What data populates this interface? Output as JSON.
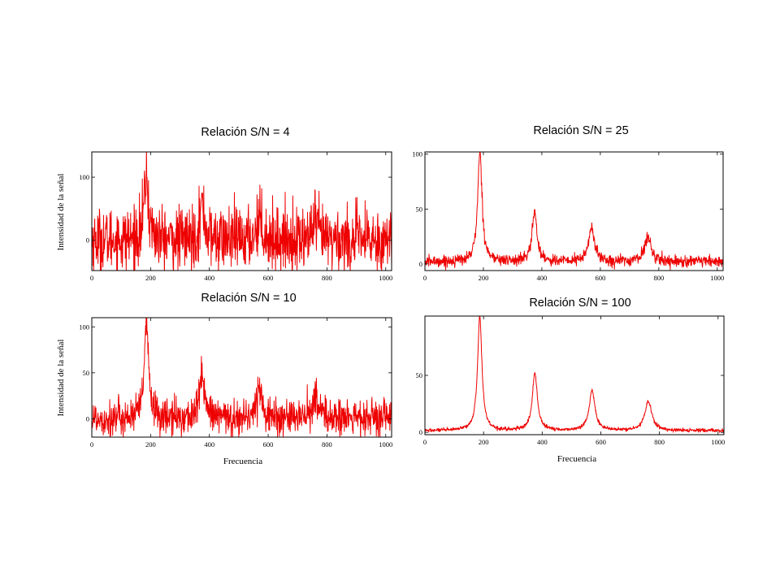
{
  "colors": {
    "trace": "#ee0000",
    "axis": "#000000",
    "background": "#ffffff"
  },
  "chart_data": [
    {
      "id": "sn4",
      "type": "line",
      "title": "Relación S/N = 4",
      "xlabel": "",
      "ylabel": "Intensidad de la señal",
      "xlim": [
        0,
        1020
      ],
      "ylim": [
        -48,
        140
      ],
      "xticks": [
        "0",
        "200",
        "400",
        "600",
        "800",
        "1000"
      ],
      "yticks": [
        "0",
        "100"
      ],
      "grid": false,
      "signal": {
        "baseline": 0,
        "noise_sd": 25,
        "peaks": [
          [
            185,
            100,
            9
          ],
          [
            375,
            55,
            10
          ],
          [
            570,
            35,
            12
          ],
          [
            760,
            25,
            14
          ]
        ]
      }
    },
    {
      "id": "sn25",
      "type": "line",
      "title": "Relación S/N = 25",
      "xlabel": "",
      "ylabel": "",
      "xlim": [
        0,
        1020
      ],
      "ylim": [
        -6,
        102
      ],
      "xticks": [
        "0",
        "200",
        "400",
        "600",
        "800",
        "1000"
      ],
      "yticks": [
        "0",
        "50",
        "100"
      ],
      "grid": false,
      "signal": {
        "baseline": 2,
        "noise_sd": 2.6,
        "peaks": [
          [
            188,
            100,
            9
          ],
          [
            375,
            45,
            10
          ],
          [
            570,
            31,
            12
          ],
          [
            762,
            22,
            14
          ]
        ]
      }
    },
    {
      "id": "sn10",
      "type": "line",
      "title": "Relación S/N = 10",
      "xlabel": "Frecuencia",
      "ylabel": "Intensidad de la señal",
      "xlim": [
        0,
        1020
      ],
      "ylim": [
        -20,
        110
      ],
      "xticks": [
        "0",
        "200",
        "400",
        "600",
        "800",
        "1000"
      ],
      "yticks": [
        "0",
        "50",
        "100"
      ],
      "grid": false,
      "signal": {
        "baseline": 0,
        "noise_sd": 10,
        "peaks": [
          [
            186,
            100,
            9
          ],
          [
            375,
            50,
            10
          ],
          [
            570,
            32,
            12
          ],
          [
            762,
            24,
            14
          ]
        ]
      }
    },
    {
      "id": "sn100",
      "type": "line",
      "title": "Relación S/N = 100",
      "xlabel": "Frecuencia",
      "ylabel": "",
      "xlim": [
        0,
        1020
      ],
      "ylim": [
        -2,
        102
      ],
      "xticks": [
        "0",
        "200",
        "400",
        "600",
        "800",
        "1000"
      ],
      "yticks": [
        "0",
        "50"
      ],
      "grid": false,
      "signal": {
        "baseline": 1.5,
        "noise_sd": 0.8,
        "peaks": [
          [
            187,
            100,
            9
          ],
          [
            375,
            51,
            10
          ],
          [
            570,
            35,
            12
          ],
          [
            762,
            26,
            14
          ]
        ]
      }
    }
  ]
}
